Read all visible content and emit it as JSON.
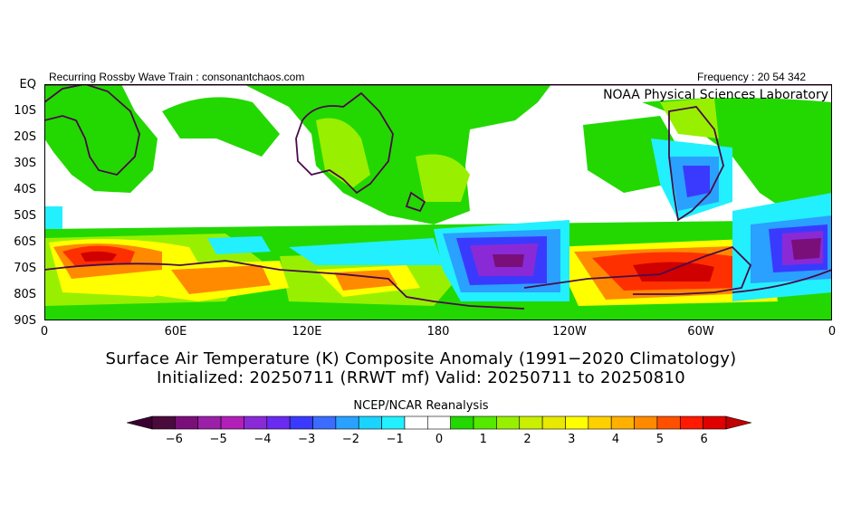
{
  "header": {
    "left_text": "Recurring Rossby Wave Train : consonantchaos.com",
    "right_text": "Frequency : 20 54 342",
    "lab_label": "NOAA Physical Sciences Laboratory"
  },
  "axes": {
    "y_ticks": [
      "EQ",
      "10S",
      "20S",
      "30S",
      "40S",
      "50S",
      "60S",
      "70S",
      "80S",
      "90S"
    ],
    "x_ticks": [
      "0",
      "60E",
      "120E",
      "180",
      "120W",
      "60W",
      "0"
    ]
  },
  "titles": {
    "line1": "Surface Air Temperature (K) Composite Anomaly (1991−2020 Climatology)",
    "line2": "Initialized: 20250711 (RRWT mf) Valid: 20250711 to 20250810"
  },
  "colorbar": {
    "source": "NCEP/NCAR Reanalysis",
    "labels": [
      "−6",
      "−5",
      "−4",
      "−3",
      "−2",
      "−1",
      "0",
      "1",
      "2",
      "3",
      "4",
      "5",
      "6"
    ],
    "colors": [
      "#4b0a3c",
      "#7a0f7a",
      "#9b20a8",
      "#b21fb8",
      "#8a2ad6",
      "#6a2af0",
      "#3a3aff",
      "#3a6cff",
      "#2aa0ff",
      "#1ad4ff",
      "#22f0ff",
      "#ffffff",
      "#ffffff",
      "#22d800",
      "#55e800",
      "#98f000",
      "#c8f000",
      "#e8e800",
      "#ffff00",
      "#ffd000",
      "#ffb000",
      "#ff8a00",
      "#ff5000",
      "#ff1a00",
      "#e00000"
    ]
  },
  "map": {
    "domain": "Southern Hemisphere, EQ to 90S, 0 to 360",
    "variable": "surface air temperature anomaly (K)"
  }
}
